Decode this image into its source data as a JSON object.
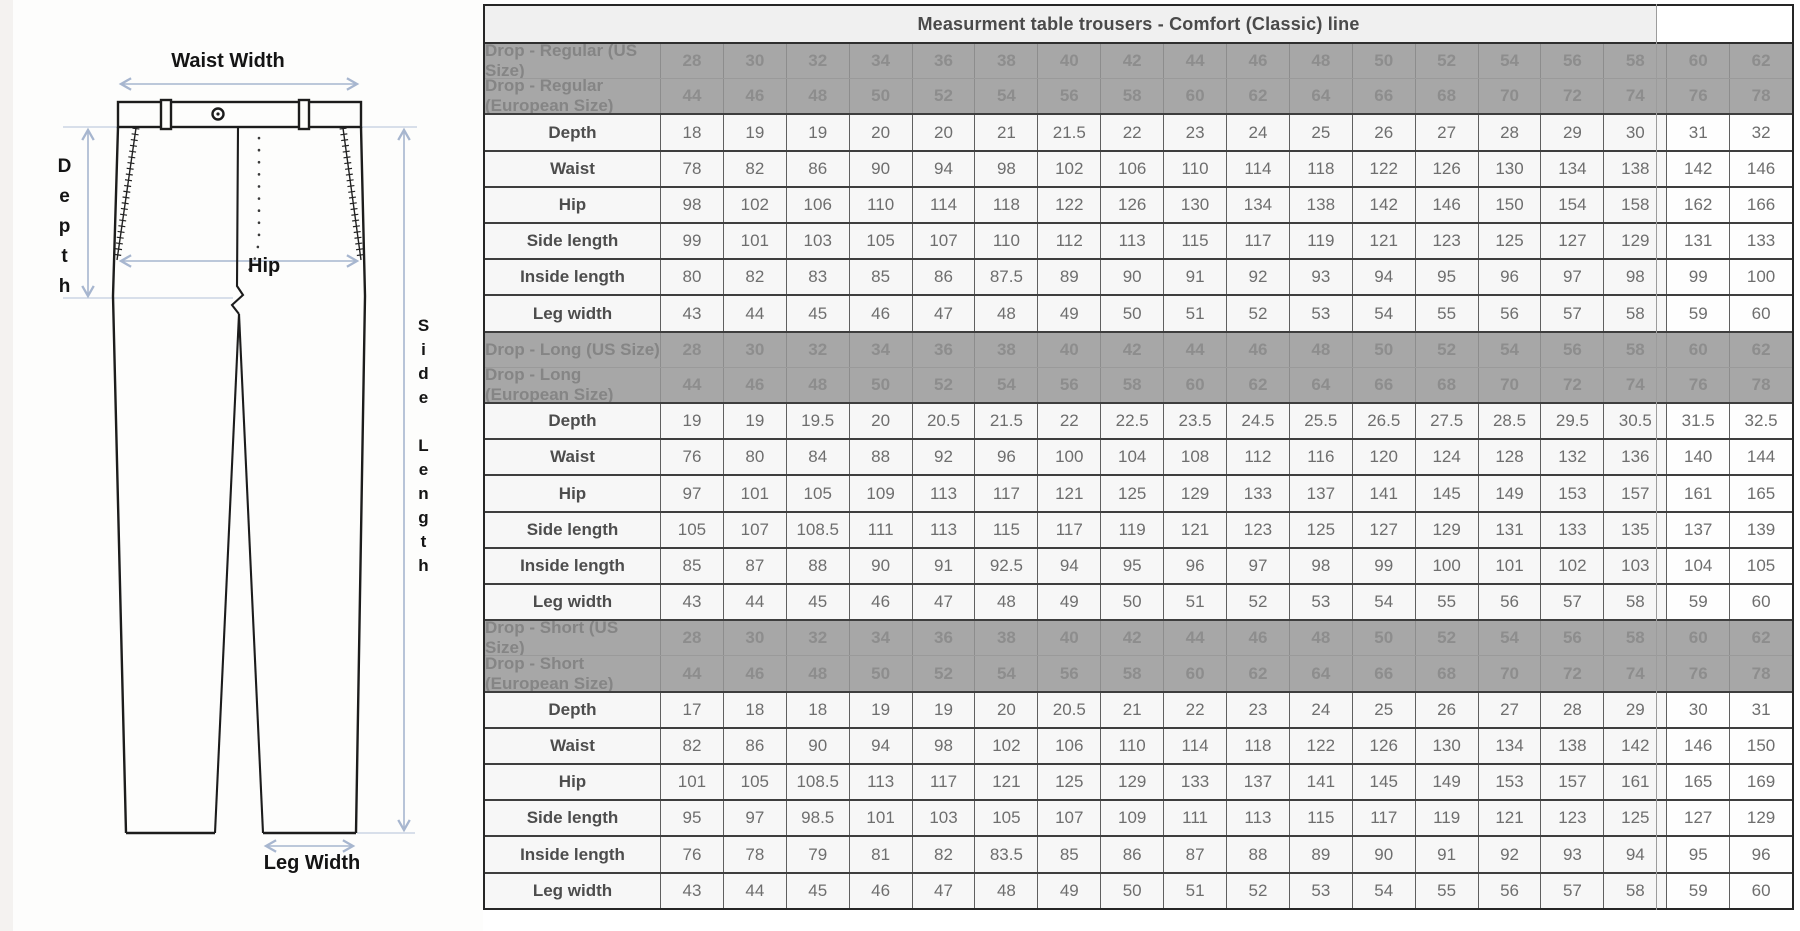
{
  "diagram": {
    "labels": {
      "waist_width": "Waist Width",
      "depth": "Depth",
      "hip": "Hip",
      "side_length": "Side Length",
      "leg_width": "Leg Width"
    }
  },
  "colors": {
    "annotation_arrow": "#a7b6cf",
    "annotation_guide": "#c2cdde",
    "drawing_line": "#1c1c1c",
    "header_row_bg": "#a7a7a7",
    "header_row_text": "#8d8d8d",
    "data_row_bg": "#f7f7f7",
    "value_text": "#6e6e6e",
    "label_text": "#4d4d4d",
    "title_bg": "#f0f0f0",
    "title_text": "#4a4a4a",
    "border_dark": "#3e3e3e"
  },
  "table": {
    "title": "Measurment table trousers - Comfort (Classic) line",
    "us_sizes": [
      "28",
      "30",
      "32",
      "34",
      "36",
      "38",
      "40",
      "42",
      "44",
      "46",
      "48",
      "50",
      "52",
      "54",
      "56",
      "58",
      "60",
      "62"
    ],
    "eu_sizes": [
      "44",
      "46",
      "48",
      "50",
      "52",
      "54",
      "56",
      "58",
      "60",
      "62",
      "64",
      "66",
      "68",
      "70",
      "72",
      "74",
      "76",
      "78"
    ],
    "sections": [
      {
        "us_label": "Drop - Regular (US Size)",
        "eu_label": "Drop - Regular (European Size)",
        "rows": [
          {
            "label": "Depth",
            "values": [
              "18",
              "19",
              "19",
              "20",
              "20",
              "21",
              "21.5",
              "22",
              "23",
              "24",
              "25",
              "26",
              "27",
              "28",
              "29",
              "30",
              "31",
              "32"
            ]
          },
          {
            "label": "Waist",
            "values": [
              "78",
              "82",
              "86",
              "90",
              "94",
              "98",
              "102",
              "106",
              "110",
              "114",
              "118",
              "122",
              "126",
              "130",
              "134",
              "138",
              "142",
              "146"
            ]
          },
          {
            "label": "Hip",
            "values": [
              "98",
              "102",
              "106",
              "110",
              "114",
              "118",
              "122",
              "126",
              "130",
              "134",
              "138",
              "142",
              "146",
              "150",
              "154",
              "158",
              "162",
              "166"
            ]
          },
          {
            "label": "Side length",
            "values": [
              "99",
              "101",
              "103",
              "105",
              "107",
              "110",
              "112",
              "113",
              "115",
              "117",
              "119",
              "121",
              "123",
              "125",
              "127",
              "129",
              "131",
              "133"
            ]
          },
          {
            "label": "Inside length",
            "values": [
              "80",
              "82",
              "83",
              "85",
              "86",
              "87.5",
              "89",
              "90",
              "91",
              "92",
              "93",
              "94",
              "95",
              "96",
              "97",
              "98",
              "99",
              "100"
            ]
          },
          {
            "label": "Leg width",
            "values": [
              "43",
              "44",
              "45",
              "46",
              "47",
              "48",
              "49",
              "50",
              "51",
              "52",
              "53",
              "54",
              "55",
              "56",
              "57",
              "58",
              "59",
              "60"
            ]
          }
        ]
      },
      {
        "us_label": "Drop - Long (US Size)",
        "eu_label": "Drop - Long (European Size)",
        "rows": [
          {
            "label": "Depth",
            "values": [
              "19",
              "19",
              "19.5",
              "20",
              "20.5",
              "21.5",
              "22",
              "22.5",
              "23.5",
              "24.5",
              "25.5",
              "26.5",
              "27.5",
              "28.5",
              "29.5",
              "30.5",
              "31.5",
              "32.5"
            ]
          },
          {
            "label": "Waist",
            "values": [
              "76",
              "80",
              "84",
              "88",
              "92",
              "96",
              "100",
              "104",
              "108",
              "112",
              "116",
              "120",
              "124",
              "128",
              "132",
              "136",
              "140",
              "144"
            ]
          },
          {
            "label": "Hip",
            "values": [
              "97",
              "101",
              "105",
              "109",
              "113",
              "117",
              "121",
              "125",
              "129",
              "133",
              "137",
              "141",
              "145",
              "149",
              "153",
              "157",
              "161",
              "165"
            ]
          },
          {
            "label": "Side length",
            "values": [
              "105",
              "107",
              "108.5",
              "111",
              "113",
              "115",
              "117",
              "119",
              "121",
              "123",
              "125",
              "127",
              "129",
              "131",
              "133",
              "135",
              "137",
              "139"
            ]
          },
          {
            "label": "Inside length",
            "values": [
              "85",
              "87",
              "88",
              "90",
              "91",
              "92.5",
              "94",
              "95",
              "96",
              "97",
              "98",
              "99",
              "100",
              "101",
              "102",
              "103",
              "104",
              "105"
            ]
          },
          {
            "label": "Leg width",
            "values": [
              "43",
              "44",
              "45",
              "46",
              "47",
              "48",
              "49",
              "50",
              "51",
              "52",
              "53",
              "54",
              "55",
              "56",
              "57",
              "58",
              "59",
              "60"
            ]
          }
        ]
      },
      {
        "us_label": "Drop - Short (US Size)",
        "eu_label": "Drop - Short (European Size)",
        "rows": [
          {
            "label": "Depth",
            "values": [
              "17",
              "18",
              "18",
              "19",
              "19",
              "20",
              "20.5",
              "21",
              "22",
              "23",
              "24",
              "25",
              "26",
              "27",
              "28",
              "29",
              "30",
              "31"
            ]
          },
          {
            "label": "Waist",
            "values": [
              "82",
              "86",
              "90",
              "94",
              "98",
              "102",
              "106",
              "110",
              "114",
              "118",
              "122",
              "126",
              "130",
              "134",
              "138",
              "142",
              "146",
              "150"
            ]
          },
          {
            "label": "Hip",
            "values": [
              "101",
              "105",
              "108.5",
              "113",
              "117",
              "121",
              "125",
              "129",
              "133",
              "137",
              "141",
              "145",
              "149",
              "153",
              "157",
              "161",
              "165",
              "169"
            ]
          },
          {
            "label": "Side length",
            "values": [
              "95",
              "97",
              "98.5",
              "101",
              "103",
              "105",
              "107",
              "109",
              "111",
              "113",
              "115",
              "117",
              "119",
              "121",
              "123",
              "125",
              "127",
              "129"
            ]
          },
          {
            "label": "Inside length",
            "values": [
              "76",
              "78",
              "79",
              "81",
              "82",
              "83.5",
              "85",
              "86",
              "87",
              "88",
              "89",
              "90",
              "91",
              "92",
              "93",
              "94",
              "95",
              "96"
            ]
          },
          {
            "label": "Leg width",
            "values": [
              "43",
              "44",
              "45",
              "46",
              "47",
              "48",
              "49",
              "50",
              "51",
              "52",
              "53",
              "54",
              "55",
              "56",
              "57",
              "58",
              "59",
              "60"
            ]
          }
        ]
      }
    ]
  }
}
